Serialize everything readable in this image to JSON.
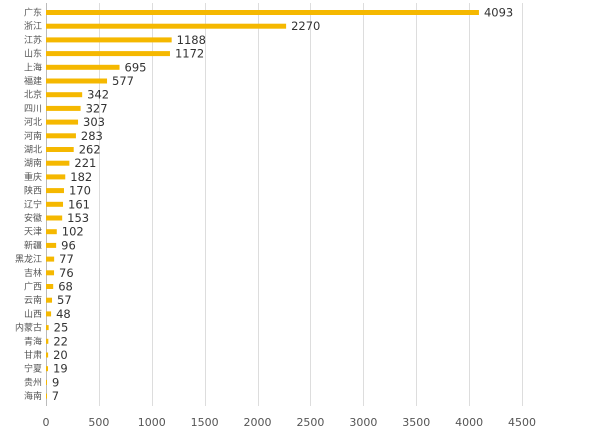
{
  "chart_data": {
    "type": "bar",
    "orientation": "horizontal",
    "title": "",
    "xlabel": "",
    "ylabel": "",
    "xlim": [
      0,
      4500
    ],
    "x_ticks": [
      0,
      500,
      1000,
      1500,
      2000,
      2500,
      3000,
      3500,
      4000,
      4500
    ],
    "grid": true,
    "legend": "none",
    "bar_color": "#F5B800",
    "categories": [
      "广东",
      "浙江",
      "江苏",
      "山东",
      "上海",
      "福建",
      "北京",
      "四川",
      "河北",
      "河南",
      "湖北",
      "湖南",
      "重庆",
      "陕西",
      "辽宁",
      "安徽",
      "天津",
      "新疆",
      "黑龙江",
      "吉林",
      "广西",
      "云南",
      "山西",
      "内蒙古",
      "青海",
      "甘肃",
      "宁夏",
      "贵州",
      "海南"
    ],
    "values": [
      4093,
      2270,
      1188,
      1172,
      695,
      577,
      342,
      327,
      303,
      283,
      262,
      221,
      182,
      170,
      161,
      153,
      102,
      96,
      77,
      76,
      68,
      57,
      48,
      25,
      22,
      20,
      19,
      9,
      7
    ]
  }
}
